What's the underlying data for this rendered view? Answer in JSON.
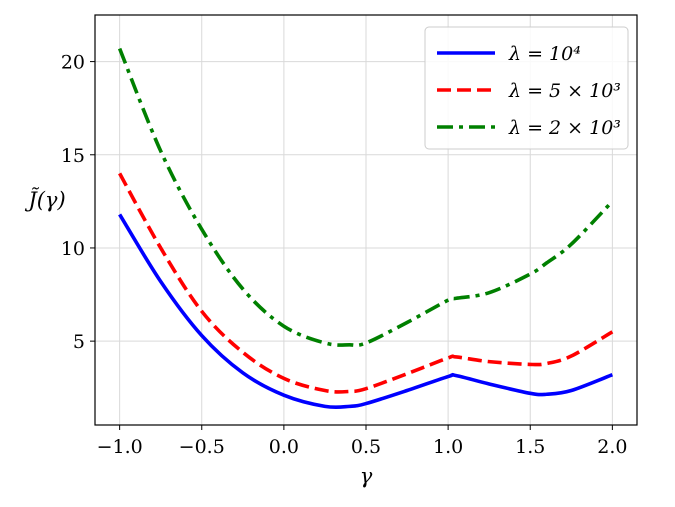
{
  "chart_data": {
    "type": "line",
    "xlabel": "γ",
    "ylabel": "J̃(γ)",
    "xlim": [
      -1.15,
      2.15
    ],
    "ylim": [
      0.5,
      22.5
    ],
    "xticks": [
      -1.0,
      -0.5,
      0.0,
      0.5,
      1.0,
      1.5,
      2.0
    ],
    "xtick_labels": [
      "−1.0",
      "−0.5",
      "0.0",
      "0.5",
      "1.0",
      "1.5",
      "2.0"
    ],
    "yticks": [
      5,
      10,
      15,
      20
    ],
    "ytick_labels": [
      "5",
      "10",
      "15",
      "20"
    ],
    "grid": true,
    "legend_position": "top-right",
    "x": [
      -1.0,
      -0.75,
      -0.5,
      -0.25,
      0.0,
      0.25,
      0.4,
      0.5,
      0.75,
      1.0,
      1.05,
      1.25,
      1.5,
      1.6,
      1.75,
      2.0
    ],
    "series": [
      {
        "name": "λ = 10⁴",
        "color": "#0000ff",
        "dash": "solid",
        "values": [
          11.8,
          8.2,
          5.3,
          3.3,
          2.1,
          1.5,
          1.5,
          1.65,
          2.35,
          3.1,
          3.15,
          2.7,
          2.2,
          2.15,
          2.35,
          3.2
        ]
      },
      {
        "name": "λ = 5 × 10³",
        "color": "#ff0000",
        "dash": "dashed",
        "values": [
          14.0,
          10.0,
          6.6,
          4.4,
          3.0,
          2.35,
          2.3,
          2.45,
          3.25,
          4.1,
          4.15,
          3.9,
          3.75,
          3.8,
          4.2,
          5.5
        ]
      },
      {
        "name": "λ = 2 × 10³",
        "color": "#008000",
        "dash": "dashdot",
        "values": [
          20.7,
          15.2,
          11.0,
          7.8,
          5.8,
          4.9,
          4.8,
          4.9,
          6.0,
          7.2,
          7.3,
          7.6,
          8.6,
          9.2,
          10.2,
          12.5
        ]
      }
    ]
  }
}
